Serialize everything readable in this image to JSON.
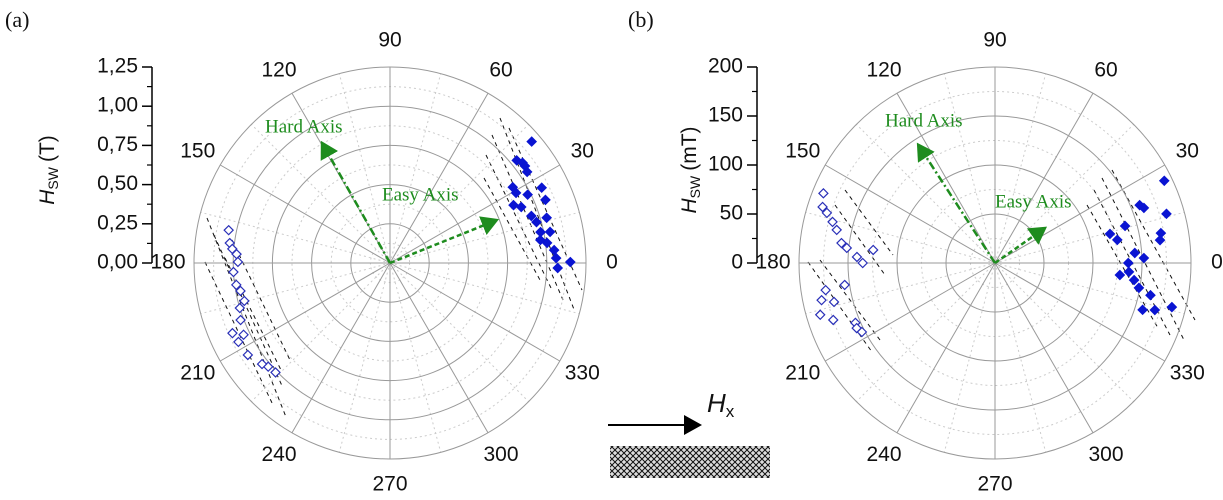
{
  "field_label": [
    "H",
    "x"
  ],
  "chart_data": [
    {
      "type": "polar-scatter",
      "panel_label": "(a)",
      "ylabel": [
        "H",
        "SW",
        "(T)"
      ],
      "ylim": [
        0,
        1.25
      ],
      "yticks": [
        {
          "value": 0,
          "label": "0,00"
        },
        {
          "value": 0.25,
          "label": "0,25"
        },
        {
          "value": 0.5,
          "label": "0,50"
        },
        {
          "value": 0.75,
          "label": "0,75"
        },
        {
          "value": 1,
          "label": "1,00"
        },
        {
          "value": 1.25,
          "label": "1,25"
        }
      ],
      "thetaticks": [
        0,
        30,
        60,
        90,
        120,
        150,
        180,
        210,
        240,
        270,
        300,
        330
      ],
      "annotations": [
        "Hard Axis",
        "Easy Axis"
      ],
      "series": [
        {
          "color": "#0a14d2",
          "marker": "filled-diamond",
          "theta": [
            40.6,
            39.0,
            37.1,
            35.7,
            33.6,
            31.7,
            26.4,
            26.4,
            22.1,
            25.1,
            23.1,
            18.4,
            16.1,
            15.6,
            11.6,
            11.0,
            8.7,
            7.3,
            4.5,
            1.7,
            0.3,
            358.3,
            29.1
          ],
          "values": [
            1.19,
            1.04,
            1.06,
            1.06,
            1.05,
            0.92,
            1.08,
            0.98,
            1.07,
            0.87,
            0.91,
            0.95,
            1.04,
            0.97,
            0.98,
            1.04,
            0.97,
            1.01,
            1.05,
            1.06,
            1.15,
            1.07,
            0.92
          ]
        },
        {
          "color": "#2a30b8",
          "marker": "open-diamond",
          "theta": [
            168.5,
            172.9,
            174.9,
            176.7,
            179.6,
            183.3,
            188.1,
            190.6,
            194.6,
            200.9,
            204.0,
            207.5,
            212.9,
            220.4,
            223.7,
            218.3,
            196.7,
            206.1
          ],
          "values": [
            1.05,
            1.03,
            1.01,
            0.98,
            0.97,
            1.0,
            0.99,
            0.97,
            0.96,
            1.02,
            1.1,
            1.09,
            1.08,
            1.02,
            1.01,
            1.04,
            1.0,
            1.04
          ]
        }
      ]
    },
    {
      "type": "polar-scatter",
      "panel_label": "(b)",
      "ylabel": [
        "H",
        "SW",
        "(mT)"
      ],
      "ylim": [
        0,
        200
      ],
      "yticks": [
        0,
        50,
        100,
        150,
        200
      ],
      "thetaticks": [
        0,
        30,
        60,
        90,
        120,
        150,
        180,
        210,
        240,
        270,
        300,
        330
      ],
      "annotations": [
        "Hard Axis",
        "Easy Axis"
      ],
      "series": [
        {
          "color": "#0a14d2",
          "marker": "filled-diamond",
          "theta": [
            25.9,
            21.8,
            20.3,
            16.0,
            10.2,
            7.9,
            14.2,
            10.7,
            15.9,
            4.1,
            1.9,
            0,
            356.2,
            353.0,
            350.2,
            348.3,
            343.6,
            346.0,
            342.4,
            354.5
          ],
          "values": [
            192,
            159,
            162,
            182,
            172,
            170,
            121,
            127,
            138,
            143,
            152,
            136,
            137,
            143,
            149,
            162,
            170,
            186,
            158,
            128
          ]
        },
        {
          "color": "#2a30b8",
          "marker": "open-diamond",
          "theta": [
            157.9,
            162.0,
            163.4,
            165.8,
            168.2,
            172.6,
            174.2,
            177.5,
            180,
            173.9,
            188.3,
            189.1,
            192.1,
            193.6,
            196.5,
            199.4,
            203.2,
            207.4,
            205.2
          ],
          "values": [
            189,
            185,
            179,
            171,
            165,
            158,
            152,
            141,
            135,
            125,
            155,
            175,
            181,
            169,
            186,
            175,
            155,
            153,
            156
          ]
        }
      ]
    }
  ]
}
